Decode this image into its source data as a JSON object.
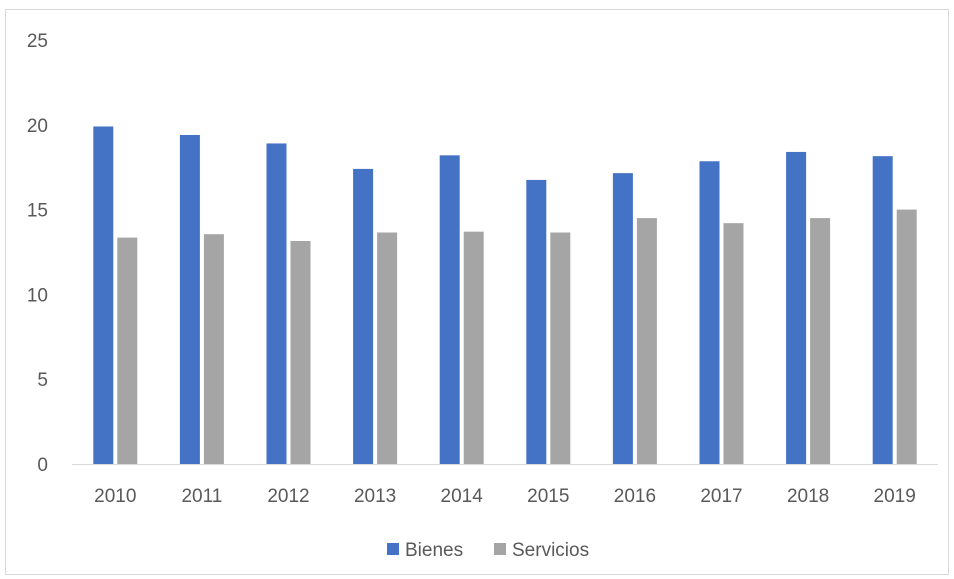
{
  "chart_data": {
    "type": "bar",
    "title": "",
    "xlabel": "",
    "ylabel": "",
    "categories": [
      "2010",
      "2011",
      "2012",
      "2013",
      "2014",
      "2015",
      "2016",
      "2017",
      "2018",
      "2019"
    ],
    "series": [
      {
        "name": "Bienes",
        "color": "#4472c4",
        "values": [
          19.9,
          19.4,
          18.9,
          17.4,
          18.2,
          16.75,
          17.15,
          17.85,
          18.4,
          18.15
        ]
      },
      {
        "name": "Servicios",
        "color": "#a5a5a5",
        "values": [
          13.35,
          13.55,
          13.15,
          13.65,
          13.7,
          13.65,
          14.5,
          14.2,
          14.5,
          15.0
        ]
      }
    ],
    "ylim": [
      0,
      25
    ],
    "yticks": [
      0,
      5,
      10,
      15,
      20,
      25
    ],
    "grid": false,
    "legend_position": "bottom"
  }
}
